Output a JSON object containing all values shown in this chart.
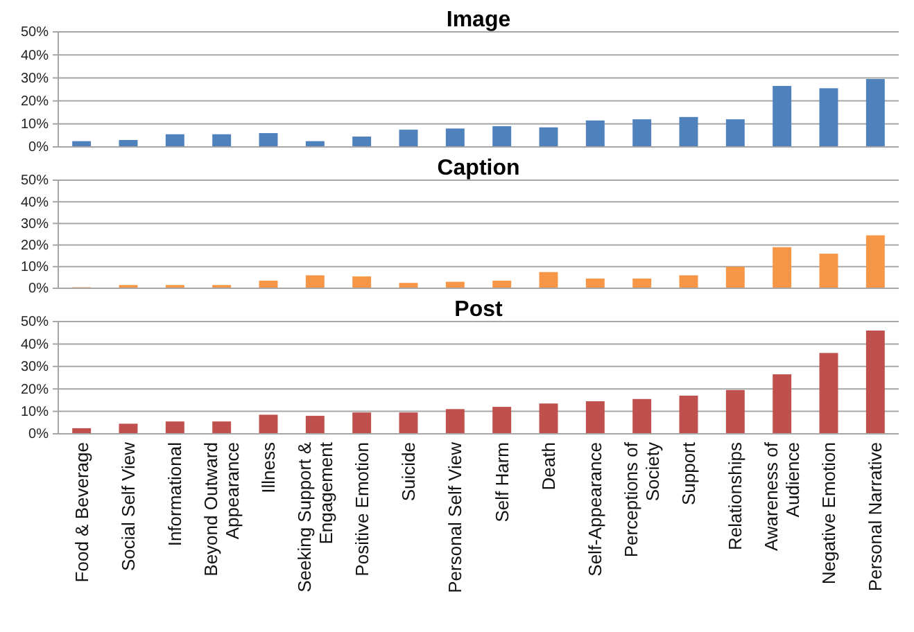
{
  "chart_data": [
    {
      "type": "bar",
      "title": "Image",
      "categories": [
        null,
        null,
        null,
        null,
        null,
        null,
        null,
        null,
        null,
        null,
        null,
        null,
        null,
        null,
        null,
        null,
        null,
        null
      ],
      "values": [
        2.5,
        3,
        5.5,
        5.5,
        6,
        2.5,
        4.5,
        7.5,
        8,
        9,
        8.5,
        11.5,
        12,
        13,
        12,
        26.5,
        25.5,
        29.5
      ],
      "color": "#4f81bd",
      "ylim": [
        0,
        50
      ],
      "yticks": [
        {
          "value": 0,
          "label": "0%"
        },
        {
          "value": 10,
          "label": "10%"
        },
        {
          "value": 20,
          "label": "20%"
        },
        {
          "value": 30,
          "label": "30%"
        },
        {
          "value": 40,
          "label": "40%"
        },
        {
          "value": 50,
          "label": "50%"
        }
      ],
      "grid": "y",
      "tick_labels": "y"
    },
    {
      "type": "bar",
      "title": "Caption",
      "categories": [
        null,
        null,
        null,
        null,
        null,
        null,
        null,
        null,
        null,
        null,
        null,
        null,
        null,
        null,
        null,
        null,
        null,
        null
      ],
      "values": [
        0.5,
        1.5,
        1.5,
        1.5,
        3.5,
        6,
        5.5,
        2.5,
        3,
        3.5,
        7.5,
        4.5,
        4.5,
        6,
        10,
        19,
        16,
        24.5
      ],
      "color": "#f79646",
      "ylim": [
        0,
        50
      ],
      "yticks": [
        {
          "value": 0,
          "label": "0%"
        },
        {
          "value": 10,
          "label": "10%"
        },
        {
          "value": 20,
          "label": "20%"
        },
        {
          "value": 30,
          "label": "30%"
        },
        {
          "value": 40,
          "label": "40%"
        },
        {
          "value": 50,
          "label": "50%"
        }
      ],
      "grid": "y",
      "tick_labels": "y"
    },
    {
      "type": "bar",
      "title": "Post",
      "categories": [
        "Food & Beverage",
        "Social Self View",
        "Informational",
        "Beyond Outward Appearance",
        "Illness",
        "Seeking Support & Engagement",
        "Positive Emotion",
        "Suicide",
        "Personal Self View",
        "Self Harm",
        "Death",
        "Self-Appearance",
        "Perceptions of Society",
        "Support",
        "Relationships",
        "Awareness of Audience",
        "Negative Emotion",
        "Personal Narrative"
      ],
      "values": [
        2.5,
        4.5,
        5.5,
        5.5,
        8.5,
        8,
        9.5,
        9.5,
        11,
        12,
        13.5,
        14.5,
        15.5,
        17,
        19.5,
        26.5,
        36,
        46
      ],
      "color": "#c0504d",
      "ylim": [
        0,
        50
      ],
      "yticks": [
        {
          "value": 0,
          "label": "0%"
        },
        {
          "value": 10,
          "label": "10%"
        },
        {
          "value": 20,
          "label": "20%"
        },
        {
          "value": 30,
          "label": "30%"
        },
        {
          "value": 40,
          "label": "40%"
        },
        {
          "value": 50,
          "label": "50%"
        }
      ],
      "grid": "y"
    }
  ]
}
